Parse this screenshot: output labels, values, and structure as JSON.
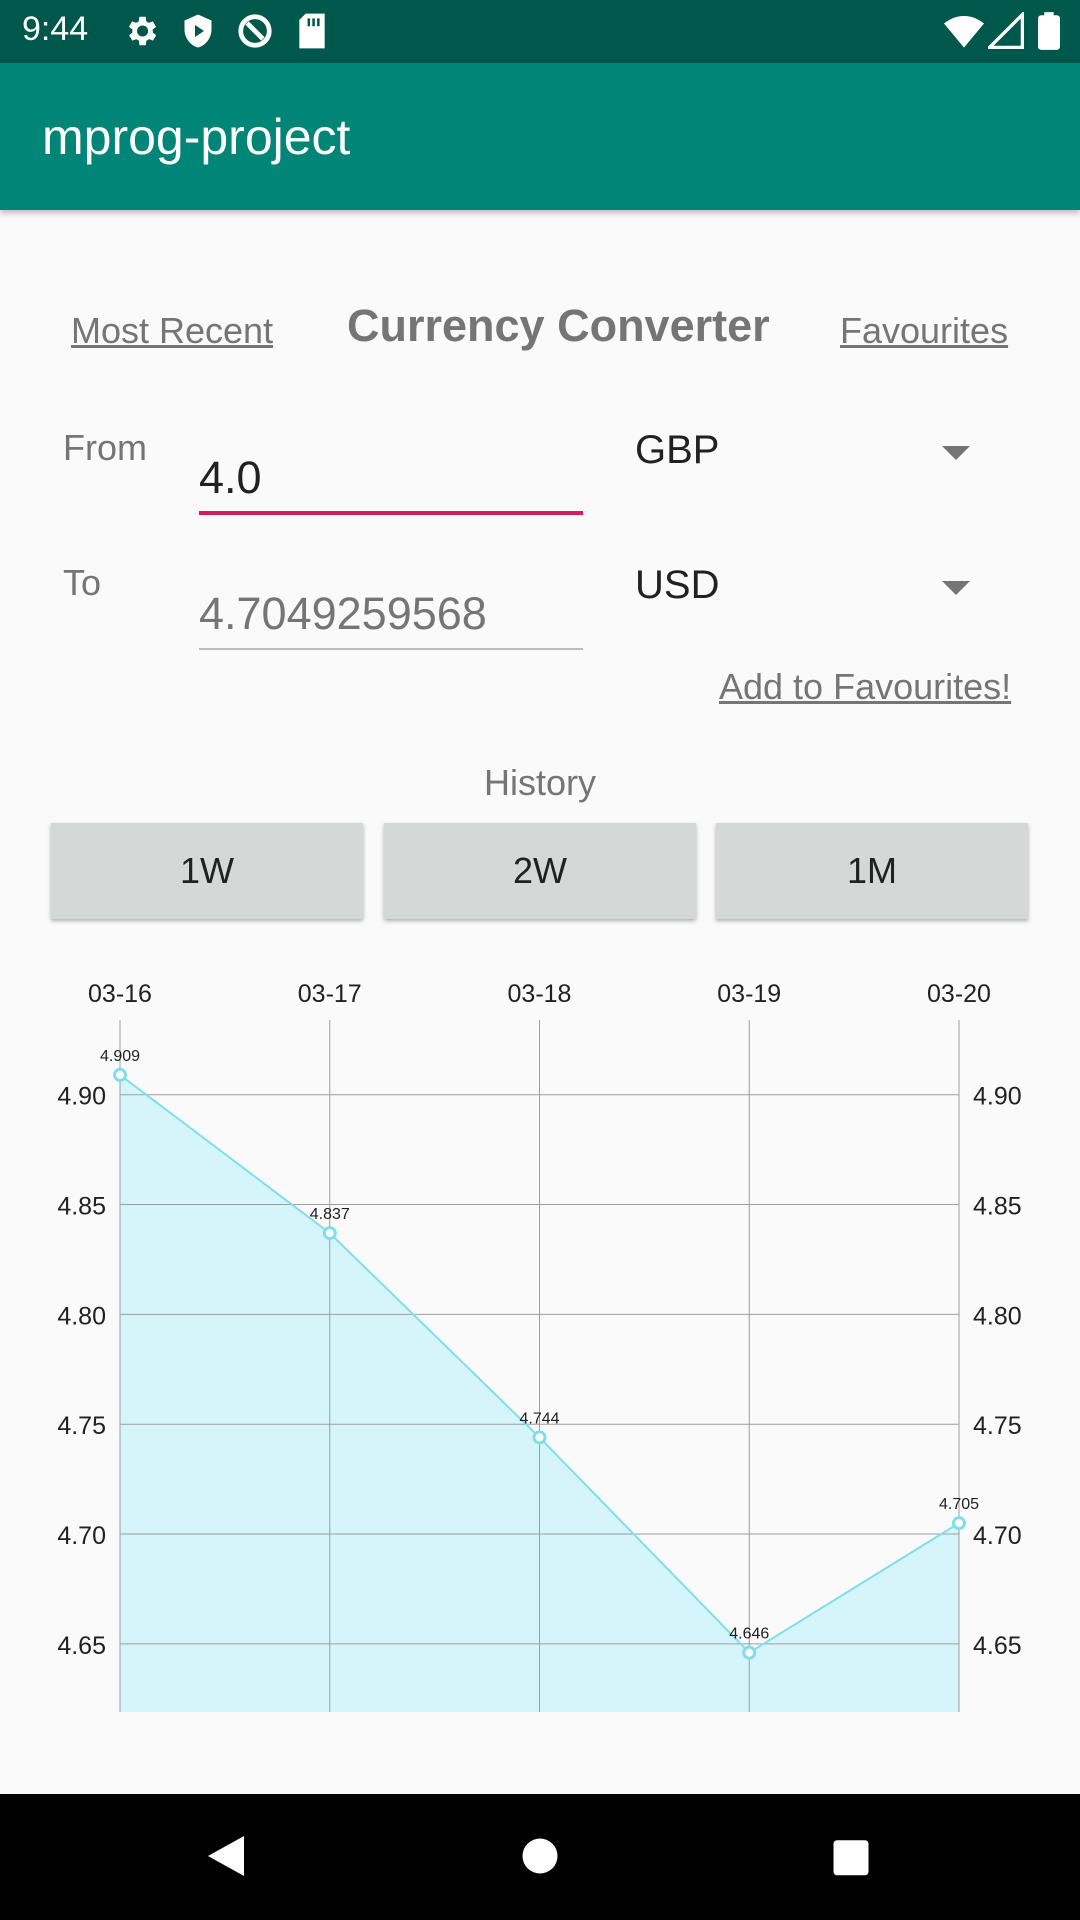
{
  "status_bar": {
    "time": "9:44"
  },
  "app_bar": {
    "title": "mprog-project"
  },
  "header": {
    "left_link": "Most Recent",
    "title": "Currency Converter",
    "right_link": "Favourites"
  },
  "converter": {
    "from_label": "From",
    "from_value": "4.0",
    "from_currency": "GBP",
    "to_label": "To",
    "to_value": "4.7049259568",
    "to_currency": "USD",
    "add_favourite": "Add to Favourites!"
  },
  "history": {
    "label": "History",
    "buttons": [
      "1W",
      "2W",
      "1M"
    ]
  },
  "colors": {
    "line": "#80deea",
    "fill": "#d6f5fb",
    "accent": "#d81b60",
    "app_bar": "#008577"
  },
  "chart_data": {
    "type": "line",
    "x": [
      "03-16",
      "03-17",
      "03-18",
      "03-19",
      "03-20"
    ],
    "values": [
      4.909,
      4.837,
      4.744,
      4.646,
      4.705
    ],
    "value_labels": [
      "4.909",
      "4.837",
      "4.744",
      "4.646",
      "4.705"
    ],
    "y_ticks": [
      "4.65",
      "4.70",
      "4.75",
      "4.80",
      "4.85",
      "4.90"
    ],
    "ylim": [
      4.619,
      4.934
    ],
    "grid": true,
    "filled": true
  }
}
